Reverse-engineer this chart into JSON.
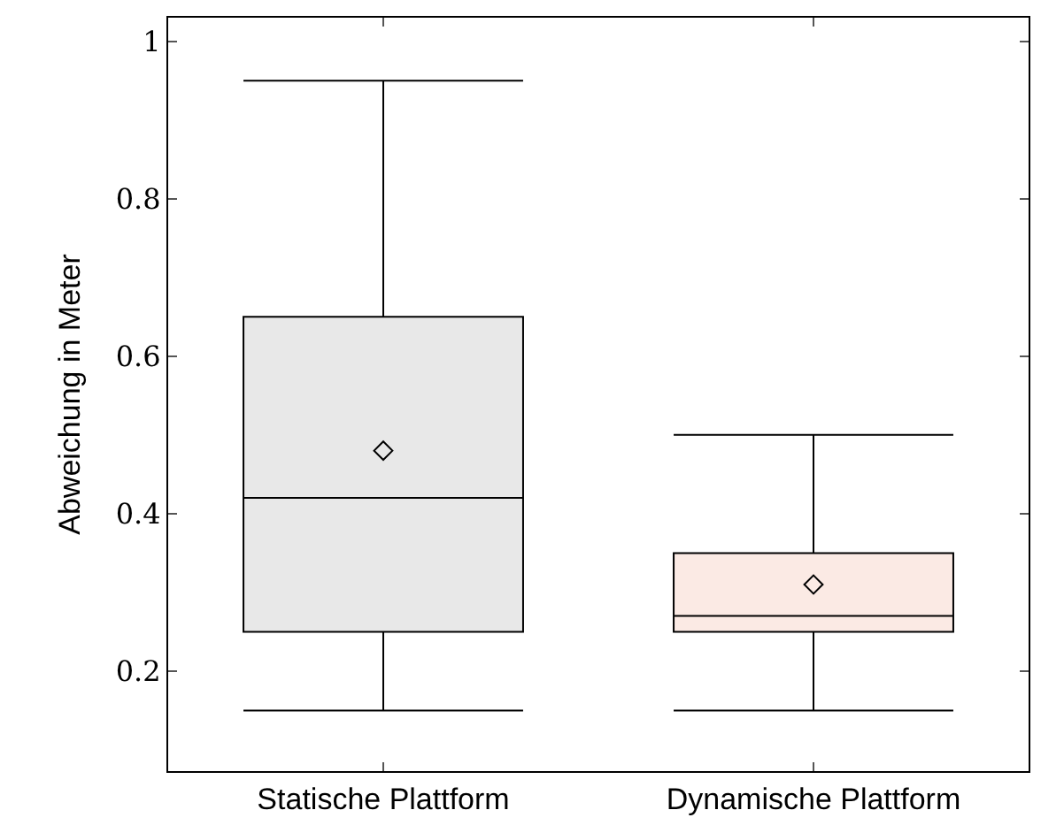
{
  "chart_data": {
    "type": "box",
    "ylabel": "Abweichung in Meter",
    "categories": [
      "Statische Plattform",
      "Dynamische Plattform"
    ],
    "colors": [
      "#e8e8e8",
      "#fbeae4"
    ],
    "boxes": [
      {
        "low": 0.15,
        "q1": 0.25,
        "median": 0.42,
        "q3": 0.65,
        "high": 0.95,
        "mean": 0.48
      },
      {
        "low": 0.15,
        "q1": 0.25,
        "median": 0.27,
        "q3": 0.35,
        "high": 0.5,
        "mean": 0.31
      }
    ],
    "ylim": [
      0.073,
      1.03
    ],
    "yticks": [
      0.2,
      0.4,
      0.6,
      0.8,
      1
    ],
    "marker": "diamond"
  }
}
